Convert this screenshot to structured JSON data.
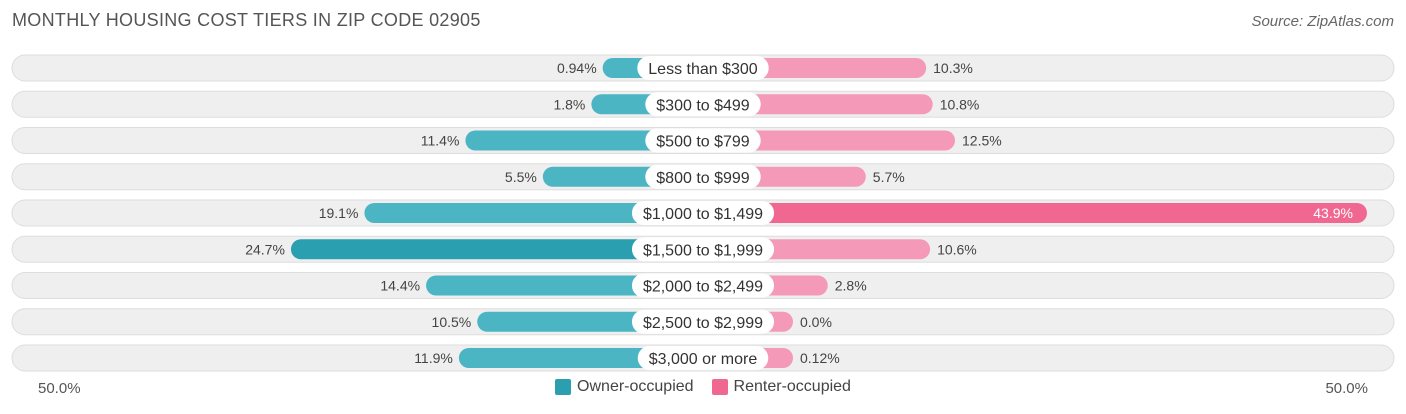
{
  "title": "MONTHLY HOUSING COST TIERS IN ZIP CODE 02905",
  "source": "Source: ZipAtlas.com",
  "colors": {
    "owner": "#4cb5c4",
    "owner_dark": "#2a9fb0",
    "renter": "#f49ab8",
    "renter_dark": "#f06892",
    "row_bg": "#efefef"
  },
  "legend": {
    "owner_label": "Owner-occupied",
    "renter_label": "Renter-occupied"
  },
  "axis": {
    "left_label": "50.0%",
    "right_label": "50.0%"
  },
  "chart_data": {
    "type": "bar",
    "orientation": "diverging-horizontal",
    "categories": [
      "Less than $300",
      "$300 to $499",
      "$500 to $799",
      "$800 to $999",
      "$1,000 to $1,499",
      "$1,500 to $1,999",
      "$2,000 to $2,499",
      "$2,500 to $2,999",
      "$3,000 or more"
    ],
    "series": [
      {
        "name": "Owner-occupied",
        "values": [
          0.94,
          1.8,
          11.4,
          5.5,
          19.1,
          24.7,
          14.4,
          10.5,
          11.9
        ],
        "labels": [
          "0.94%",
          "1.8%",
          "11.4%",
          "5.5%",
          "19.1%",
          "24.7%",
          "14.4%",
          "10.5%",
          "11.9%"
        ]
      },
      {
        "name": "Renter-occupied",
        "values": [
          10.3,
          10.8,
          12.5,
          5.7,
          43.9,
          10.6,
          2.8,
          0.0,
          0.12
        ],
        "labels": [
          "10.3%",
          "10.8%",
          "12.5%",
          "5.7%",
          "43.9%",
          "10.6%",
          "2.8%",
          "0.0%",
          "0.12%"
        ]
      }
    ],
    "xlim": [
      -50,
      50
    ],
    "legend_position": "bottom-center"
  }
}
